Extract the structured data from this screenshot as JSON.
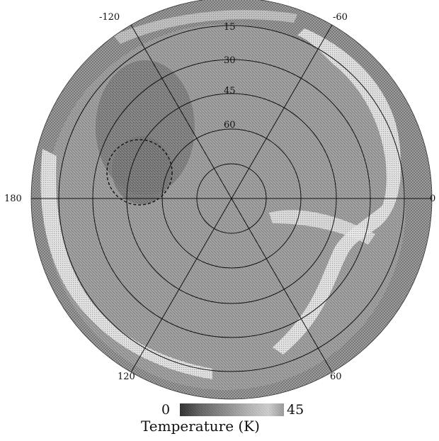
{
  "map": {
    "projection": "polar",
    "longitude_labels": {
      "top_left": "-120",
      "top_right": "-60",
      "left": "180",
      "right": "0",
      "bottom_left": "120",
      "bottom_right": "60"
    },
    "latitude_labels": [
      "15",
      "30",
      "45",
      "60"
    ],
    "feature": "dashed-circle-outline"
  },
  "colorbar": {
    "min_label": "0",
    "max_label": "45",
    "title": "Temperature (K)",
    "range": [
      0,
      45
    ],
    "colors": [
      "#111111",
      "#555555",
      "#8a8a8a",
      "#b8b8b8",
      "#dcdcdc",
      "#f4f4f4"
    ]
  },
  "colors": {
    "disc_base": "#9b9b9b",
    "warm_band": "#e8e8e8",
    "cold_region": "#5a5a5a",
    "grid": "#111111"
  }
}
